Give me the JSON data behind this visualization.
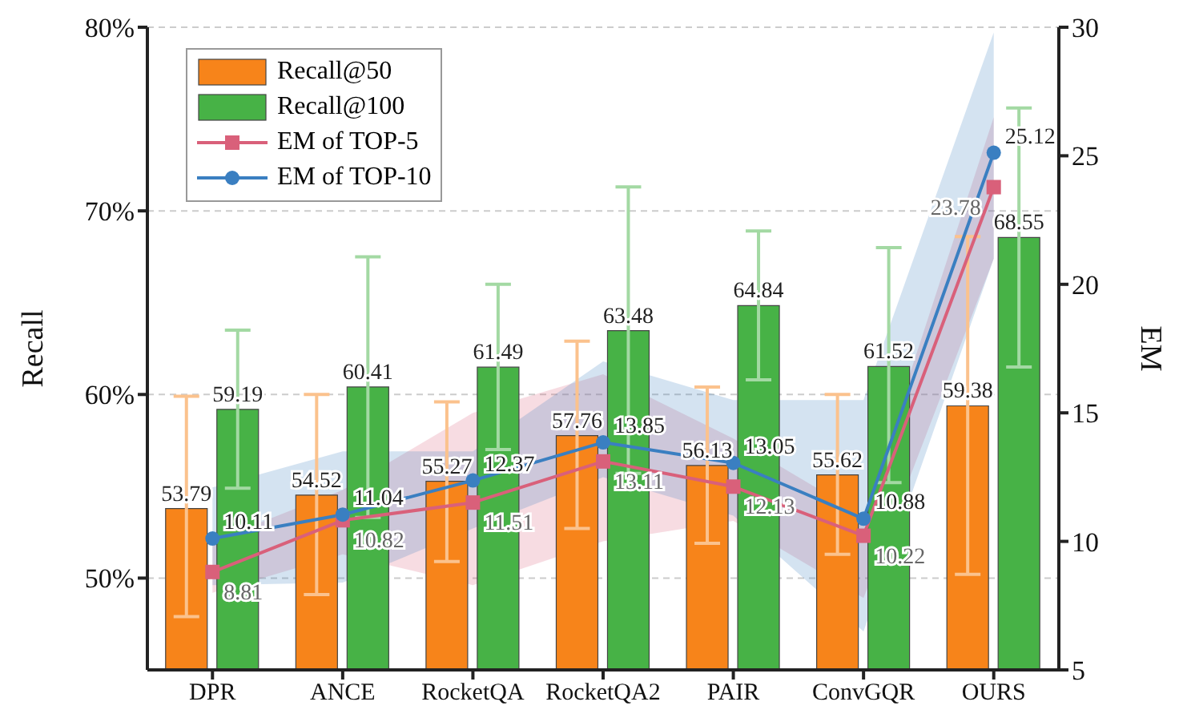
{
  "chart_data": {
    "type": "bar",
    "xlabel": null,
    "ylabel": "Recall",
    "y2label": "EM",
    "categories": [
      "DPR",
      "ANCE",
      "RocketQA",
      "RocketQA2",
      "PAIR",
      "ConvGQR",
      "OURS"
    ],
    "series": [
      {
        "name": "Recall@50",
        "type": "bar",
        "color": "#f7841a",
        "values": [
          53.79,
          54.52,
          55.27,
          57.76,
          56.13,
          55.62,
          59.38
        ],
        "errors": [
          [
            47.9,
            59.9
          ],
          [
            49.1,
            60.0
          ],
          [
            50.9,
            59.6
          ],
          [
            52.7,
            62.9
          ],
          [
            51.9,
            60.4
          ],
          [
            51.3,
            60.0
          ],
          [
            50.2,
            68.6
          ]
        ]
      },
      {
        "name": "Recall@100",
        "type": "bar",
        "color": "#47b246",
        "values": [
          59.19,
          60.41,
          61.49,
          63.48,
          64.84,
          61.52,
          68.55
        ],
        "errors": [
          [
            54.9,
            63.5
          ],
          [
            53.3,
            67.5
          ],
          [
            57.0,
            66.0
          ],
          [
            55.7,
            71.3
          ],
          [
            60.8,
            68.9
          ],
          [
            55.2,
            68.0
          ],
          [
            61.5,
            75.6
          ]
        ]
      },
      {
        "name": "EM of TOP-5",
        "type": "line",
        "axis": "y2",
        "marker": "square",
        "color": "#d9607a",
        "values": [
          8.81,
          10.82,
          11.51,
          13.11,
          12.13,
          10.22,
          23.78
        ],
        "lower": [
          8.0,
          9.5,
          8.3,
          10.0,
          10.8,
          7.8,
          21.0
        ],
        "upper": [
          10.0,
          12.0,
          15.0,
          16.5,
          14.0,
          11.0,
          26.5
        ]
      },
      {
        "name": "EM of TOP-10",
        "type": "line",
        "axis": "y2",
        "marker": "circle",
        "color": "#3a7fc1",
        "values": [
          10.11,
          11.04,
          12.37,
          13.85,
          13.05,
          10.88,
          25.12
        ],
        "lower": [
          8.3,
          8.4,
          10.5,
          12.5,
          11.0,
          6.5,
          21.0
        ],
        "upper": [
          12.1,
          13.5,
          13.5,
          17.0,
          15.5,
          15.5,
          29.8
        ]
      }
    ],
    "ylim": [
      45,
      80
    ],
    "yticks": [
      {
        "value": 50,
        "label": "50%"
      },
      {
        "value": 60,
        "label": "60%"
      },
      {
        "value": 70,
        "label": "70%"
      },
      {
        "value": 80,
        "label": "80%"
      }
    ],
    "y2lim": [
      5,
      30
    ],
    "y2ticks": [
      5,
      10,
      15,
      20,
      25,
      30
    ],
    "grid": "y",
    "legend": "top left",
    "data_labels": true
  }
}
